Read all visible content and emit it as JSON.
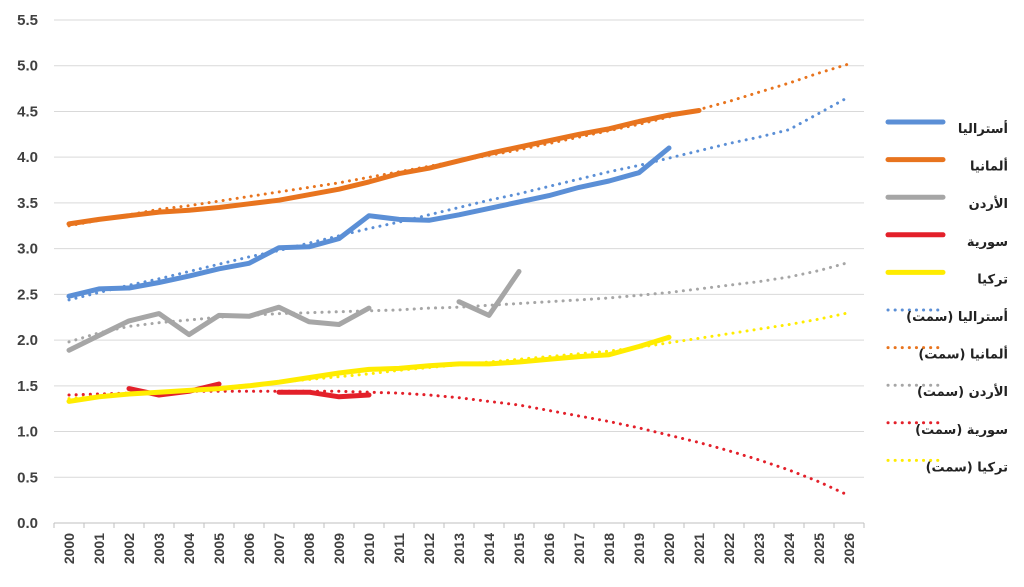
{
  "chart_data": {
    "type": "line",
    "title": "",
    "xlabel": "",
    "ylabel": "",
    "ylim": [
      0,
      5.5
    ],
    "yticks": [
      "0.0",
      "0.5",
      "1.0",
      "1.5",
      "2.0",
      "2.5",
      "3.0",
      "3.5",
      "4.0",
      "4.5",
      "5.0",
      "5.5"
    ],
    "x": [
      2000,
      2001,
      2002,
      2003,
      2004,
      2005,
      2006,
      2007,
      2008,
      2009,
      2010,
      2011,
      2012,
      2013,
      2014,
      2015,
      2016,
      2017,
      2018,
      2019,
      2020,
      2021,
      2022,
      2023,
      2024,
      2025,
      2026
    ],
    "grid": "horizontal",
    "legend_position": "right",
    "series": [
      {
        "name": "أستراليا",
        "color": "#5b8fd6",
        "style": "solid",
        "values": [
          2.48,
          2.56,
          2.57,
          2.63,
          2.7,
          2.78,
          2.84,
          3.01,
          3.02,
          3.11,
          3.36,
          3.32,
          3.31,
          3.37,
          3.44,
          3.51,
          3.58,
          3.67,
          3.74,
          3.83,
          4.1,
          null,
          null,
          null,
          null,
          null,
          null
        ]
      },
      {
        "name": "ألمانيا",
        "color": "#e8741e",
        "style": "solid",
        "values": [
          3.27,
          3.32,
          3.36,
          3.4,
          3.42,
          3.45,
          3.49,
          3.53,
          3.59,
          3.65,
          3.73,
          3.82,
          3.88,
          3.96,
          4.04,
          4.11,
          4.18,
          4.25,
          4.31,
          4.39,
          4.46,
          4.51,
          null,
          null,
          null,
          null,
          null
        ]
      },
      {
        "name": "الأردن",
        "color": "#a6a6a6",
        "style": "solid",
        "values": [
          1.89,
          2.05,
          2.21,
          2.29,
          2.06,
          2.27,
          2.26,
          2.36,
          2.2,
          2.17,
          2.35,
          null,
          null,
          2.42,
          2.27,
          2.75,
          null,
          null,
          null,
          null,
          null,
          null,
          null,
          null,
          null,
          null,
          null
        ]
      },
      {
        "name": "سورية",
        "color": "#e3202a",
        "style": "solid",
        "values": [
          null,
          null,
          1.47,
          1.4,
          1.44,
          1.52,
          null,
          1.43,
          1.43,
          1.38,
          1.4,
          null,
          null,
          null,
          null,
          null,
          null,
          null,
          null,
          null,
          null,
          null,
          null,
          null,
          null,
          null,
          null
        ]
      },
      {
        "name": "تركيا",
        "color": "#ffec00",
        "style": "solid",
        "values": [
          1.33,
          1.38,
          1.41,
          1.43,
          1.45,
          1.47,
          1.5,
          1.54,
          1.59,
          1.64,
          1.68,
          1.69,
          1.72,
          1.74,
          1.74,
          1.76,
          1.79,
          1.82,
          1.84,
          1.93,
          2.03,
          null,
          null,
          null,
          null,
          null,
          null
        ]
      },
      {
        "name": "أستراليا (سمت)",
        "color": "#5b8fd6",
        "style": "dotted",
        "values": [
          2.44,
          2.52,
          2.6,
          2.67,
          2.75,
          2.83,
          2.91,
          2.98,
          3.06,
          3.14,
          3.22,
          3.29,
          3.37,
          3.45,
          3.53,
          3.6,
          3.68,
          3.76,
          3.84,
          3.91,
          3.99,
          4.07,
          4.15,
          4.22,
          4.3,
          4.48,
          4.66
        ]
      },
      {
        "name": "ألمانيا (سمت)",
        "color": "#e8741e",
        "style": "dotted",
        "values": [
          3.25,
          3.31,
          3.37,
          3.43,
          3.47,
          3.52,
          3.57,
          3.62,
          3.67,
          3.72,
          3.78,
          3.84,
          3.9,
          3.96,
          4.02,
          4.08,
          4.15,
          4.22,
          4.29,
          4.36,
          4.44,
          4.52,
          4.61,
          4.71,
          4.81,
          4.92,
          5.02
        ]
      },
      {
        "name": "الأردن (سمت)",
        "color": "#a6a6a6",
        "style": "dotted",
        "values": [
          1.98,
          2.08,
          2.15,
          2.19,
          2.22,
          2.25,
          2.27,
          2.29,
          2.3,
          2.31,
          2.32,
          2.33,
          2.35,
          2.36,
          2.38,
          2.4,
          2.42,
          2.44,
          2.46,
          2.49,
          2.52,
          2.56,
          2.6,
          2.64,
          2.69,
          2.76,
          2.85
        ]
      },
      {
        "name": "سورية (سمت)",
        "color": "#e3202a",
        "style": "dotted",
        "values": [
          1.4,
          1.41,
          1.42,
          1.43,
          1.44,
          1.44,
          1.44,
          1.44,
          1.44,
          1.44,
          1.43,
          1.42,
          1.4,
          1.37,
          1.33,
          1.29,
          1.23,
          1.17,
          1.11,
          1.04,
          0.96,
          0.88,
          0.79,
          0.69,
          0.58,
          0.45,
          0.3
        ]
      },
      {
        "name": "تركيا (سمت)",
        "color": "#ffec00",
        "style": "dotted",
        "values": [
          1.36,
          1.39,
          1.41,
          1.43,
          1.45,
          1.48,
          1.51,
          1.54,
          1.57,
          1.6,
          1.63,
          1.67,
          1.7,
          1.73,
          1.76,
          1.79,
          1.82,
          1.85,
          1.88,
          1.92,
          1.97,
          2.02,
          2.07,
          2.12,
          2.17,
          2.23,
          2.3
        ]
      }
    ]
  }
}
